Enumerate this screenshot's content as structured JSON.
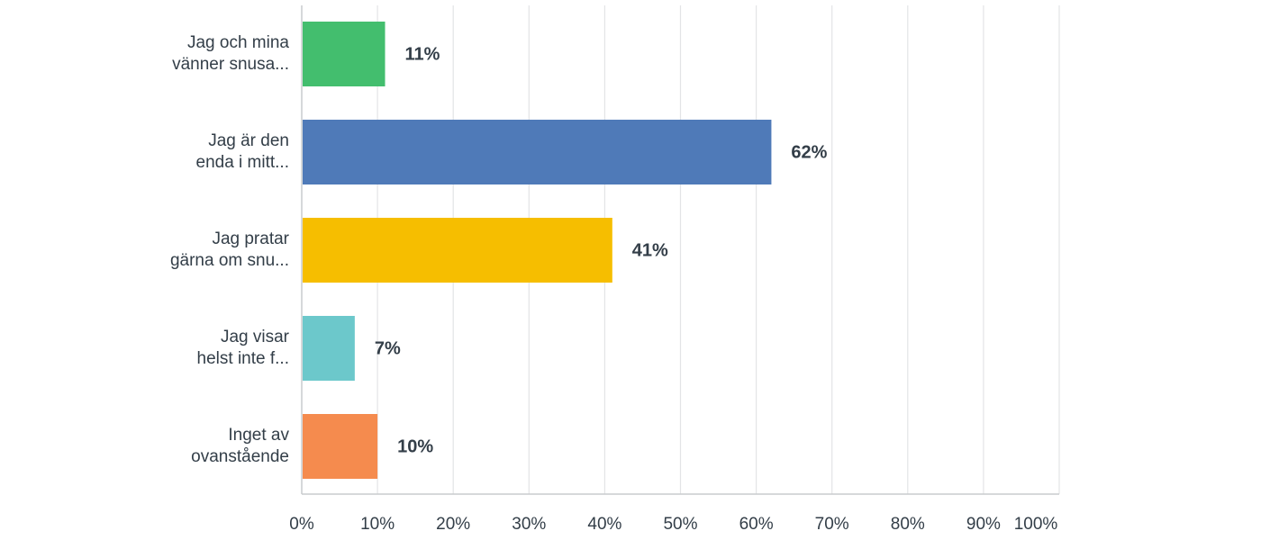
{
  "chart_data": {
    "type": "bar",
    "orientation": "horizontal",
    "title": "",
    "xlabel": "",
    "ylabel": "",
    "categories": [
      [
        "Jag och mina",
        "vänner snusa..."
      ],
      [
        "Jag är den",
        "enda i mitt..."
      ],
      [
        "Jag pratar",
        "gärna om snu..."
      ],
      [
        "Jag visar",
        "helst inte f..."
      ],
      [
        "Inget av",
        "ovanstående"
      ]
    ],
    "values": [
      11,
      62,
      41,
      7,
      10
    ],
    "value_labels": [
      "11%",
      "62%",
      "41%",
      "7%",
      "10%"
    ],
    "colors": [
      "#43be6e",
      "#4f7ab8",
      "#f6be00",
      "#6cc8cb",
      "#f58b4e"
    ],
    "xlim": [
      0,
      100
    ],
    "x_ticks": [
      "0%",
      "10%",
      "20%",
      "30%",
      "40%",
      "50%",
      "60%",
      "70%",
      "80%",
      "90%",
      "100%"
    ],
    "grid": true,
    "legend": "none"
  }
}
